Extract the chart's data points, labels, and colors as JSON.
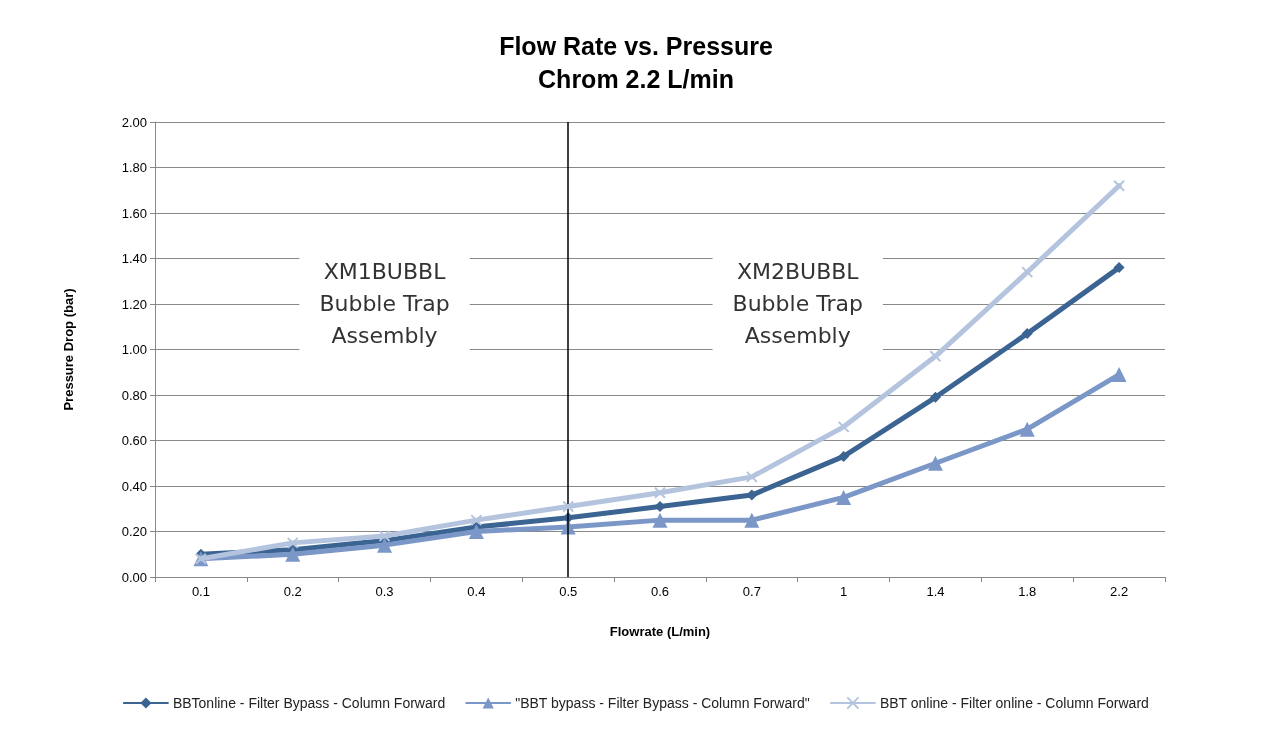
{
  "chart_data": {
    "type": "line",
    "title": "Flow Rate vs. Pressure",
    "subtitle": "Chrom 2.2 L/min",
    "xlabel": "Flowrate (L/min)",
    "ylabel": "Pressure Drop (bar)",
    "categories": [
      "0.1",
      "0.2",
      "0.3",
      "0.4",
      "0.5",
      "0.6",
      "0.7",
      "1",
      "1.4",
      "1.8",
      "2.2"
    ],
    "series": [
      {
        "name": "BBTonline - Filter Bypass - Column Forward",
        "color": "#3b6492",
        "marker": "diamond",
        "values": [
          0.1,
          0.12,
          0.16,
          0.22,
          0.26,
          0.31,
          0.36,
          0.53,
          0.79,
          1.07,
          1.36
        ]
      },
      {
        "name": "\"BBT bypass - Filter Bypass - Column Forward\"",
        "color": "#7b97c7",
        "marker": "triangle",
        "values": [
          0.08,
          0.1,
          0.14,
          0.2,
          0.22,
          0.25,
          0.25,
          0.35,
          0.5,
          0.65,
          0.89
        ]
      },
      {
        "name": "BBT online - Filter online - Column Forward",
        "color": "#b4c4de",
        "marker": "cross",
        "values": [
          0.08,
          0.15,
          0.18,
          0.25,
          0.31,
          0.37,
          0.44,
          0.66,
          0.97,
          1.34,
          1.72
        ]
      }
    ],
    "ylim": [
      0,
      2
    ],
    "yticks": [
      {
        "value": 0,
        "label": "0.00"
      },
      {
        "value": 0.2,
        "label": "0.20"
      },
      {
        "value": 0.4,
        "label": "0.40"
      },
      {
        "value": 0.6,
        "label": "0.60"
      },
      {
        "value": 0.8,
        "label": "0.80"
      },
      {
        "value": 1,
        "label": "1.00"
      },
      {
        "value": 1.2,
        "label": "1.20"
      },
      {
        "value": 1.4,
        "label": "1.40"
      },
      {
        "value": 1.6,
        "label": "1.60"
      },
      {
        "value": 1.8,
        "label": "1.80"
      },
      {
        "value": 2,
        "label": "2.00"
      }
    ],
    "ref_lines": [
      {
        "axis": "x",
        "value": "0.5",
        "color": "#000000",
        "line_style": "solid"
      }
    ],
    "annotations": [
      "XM1BUBBL\nBubble Trap\nAssembly",
      "XM2BUBBL\nBubble Trap\nAssembly"
    ],
    "grid": "y",
    "legend": "bottom",
    "line_style": "solid"
  }
}
